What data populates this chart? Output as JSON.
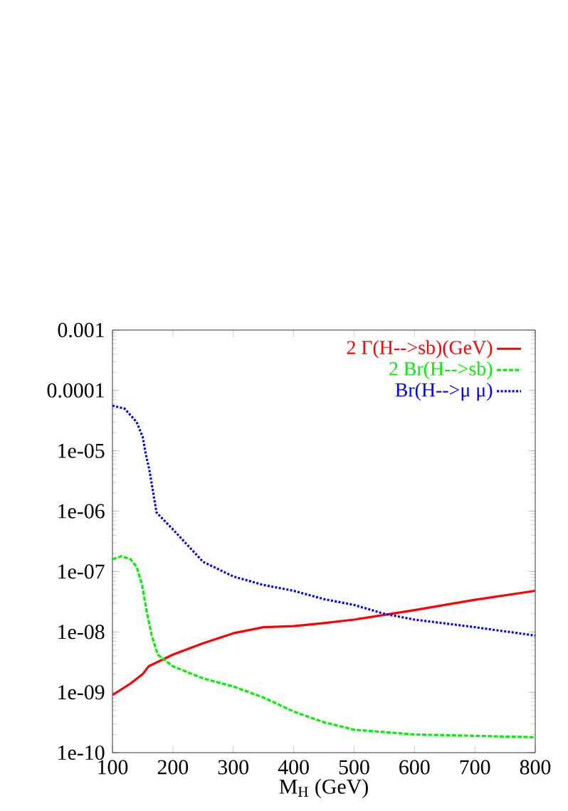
{
  "chart_data": {
    "type": "line",
    "xlabel": "M$_{H}$ (GeV)",
    "log": "y",
    "legend": "top right",
    "grid": false,
    "marker": "none",
    "xlim": [
      100,
      800
    ],
    "xticks": [
      100,
      200,
      300,
      400,
      500,
      600,
      700,
      800
    ],
    "ylim": [
      1e-10,
      0.001
    ],
    "yticks": [
      {
        "value": 1e-10,
        "label": "1e-10"
      },
      {
        "value": 1e-09,
        "label": "1e-09"
      },
      {
        "value": 1e-08,
        "label": "1e-08"
      },
      {
        "value": 1e-07,
        "label": "1e-07"
      },
      {
        "value": 1e-06,
        "label": "1e-06"
      },
      {
        "value": 1e-05,
        "label": "1e-05"
      },
      0.0001,
      0.001
    ],
    "series": [
      {
        "name": "2 Γ(H-->sb)(GeV)",
        "color": "#ff0000",
        "line_style": "solid",
        "x": [
          100,
          130,
          150,
          160,
          200,
          250,
          300,
          350,
          400,
          450,
          500,
          600,
          700,
          800
        ],
        "values": [
          9e-10,
          1.4e-09,
          2e-09,
          2.7e-09,
          4.2e-09,
          6.5e-09,
          9.5e-09,
          1.2e-08,
          1.25e-08,
          1.4e-08,
          1.6e-08,
          2.3e-08,
          3.4e-08,
          4.8e-08
        ]
      },
      {
        "name": "2 Br(H-->sb)",
        "color": "#00ee00",
        "line_style": "dashed",
        "x": [
          100,
          115,
          130,
          140,
          149,
          157,
          165,
          175,
          200,
          250,
          300,
          350,
          400,
          450,
          500,
          600,
          700,
          800
        ],
        "values": [
          1.6e-07,
          1.8e-07,
          1.6e-07,
          1.2e-07,
          6e-08,
          2.1e-08,
          8.7e-09,
          4.2e-09,
          2.7e-09,
          1.7e-09,
          1.25e-09,
          8.2e-10,
          4.8e-10,
          3.2e-10,
          2.4e-10,
          2e-10,
          1.9e-10,
          1.8e-10
        ]
      },
      {
        "name": "Br(H-->μ μ)",
        "color": "#0000ff",
        "line_style": "dotted",
        "x": [
          100,
          120,
          140,
          150,
          155,
          161,
          173,
          200,
          250,
          300,
          350,
          400,
          450,
          500,
          550,
          600,
          700,
          800
        ],
        "values": [
          5.6e-05,
          5e-05,
          3e-05,
          1.7e-05,
          9e-06,
          4.9e-06,
          9.5e-07,
          5e-07,
          1.45e-07,
          8.3e-08,
          6e-08,
          4.8e-08,
          3.5e-08,
          2.8e-08,
          2e-08,
          1.6e-08,
          1.2e-08,
          8.7e-09
        ]
      }
    ]
  }
}
